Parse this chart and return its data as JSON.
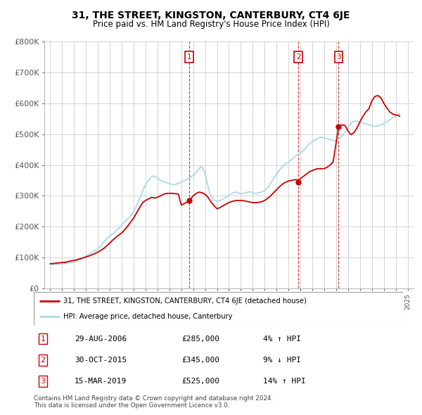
{
  "title": "31, THE STREET, KINGSTON, CANTERBURY, CT4 6JE",
  "subtitle": "Price paid vs. HM Land Registry's House Price Index (HPI)",
  "ylabel_ticks": [
    "£0",
    "£100K",
    "£200K",
    "£300K",
    "£400K",
    "£500K",
    "£600K",
    "£700K",
    "£800K"
  ],
  "ytick_values": [
    0,
    100000,
    200000,
    300000,
    400000,
    500000,
    600000,
    700000,
    800000
  ],
  "ylim": [
    0,
    800000
  ],
  "xlim_start": 1994.5,
  "xlim_end": 2025.5,
  "red_color": "#cc0000",
  "blue_color": "#add8e6",
  "grid_color": "#cccccc",
  "purchase_dates": [
    2006.67,
    2015.83,
    2019.21
  ],
  "purchase_labels": [
    "1",
    "2",
    "3"
  ],
  "purchase_prices": [
    285000,
    345000,
    525000
  ],
  "legend_line1": "31, THE STREET, KINGSTON, CANTERBURY, CT4 6JE (detached house)",
  "legend_line2": "HPI: Average price, detached house, Canterbury",
  "table_data": [
    [
      "1",
      "29-AUG-2006",
      "£285,000",
      "4% ↑ HPI"
    ],
    [
      "2",
      "30-OCT-2015",
      "£345,000",
      "9% ↓ HPI"
    ],
    [
      "3",
      "15-MAR-2019",
      "£525,000",
      "14% ↑ HPI"
    ]
  ],
  "footer": "Contains HM Land Registry data © Crown copyright and database right 2024.\nThis data is licensed under the Open Government Licence v3.0.",
  "hpi_data_x": [
    1995.0,
    1995.08,
    1995.17,
    1995.25,
    1995.33,
    1995.42,
    1995.5,
    1995.58,
    1995.67,
    1995.75,
    1995.83,
    1995.92,
    1996.0,
    1996.08,
    1996.17,
    1996.25,
    1996.33,
    1996.42,
    1996.5,
    1996.58,
    1996.67,
    1996.75,
    1996.83,
    1996.92,
    1997.0,
    1997.08,
    1997.17,
    1997.25,
    1997.33,
    1997.42,
    1997.5,
    1997.58,
    1997.67,
    1997.75,
    1997.83,
    1997.92,
    1998.0,
    1998.08,
    1998.17,
    1998.25,
    1998.33,
    1998.42,
    1998.5,
    1998.58,
    1998.67,
    1998.75,
    1998.83,
    1998.92,
    1999.0,
    1999.08,
    1999.17,
    1999.25,
    1999.33,
    1999.42,
    1999.5,
    1999.58,
    1999.67,
    1999.75,
    1999.83,
    1999.92,
    2000.0,
    2000.08,
    2000.17,
    2000.25,
    2000.33,
    2000.42,
    2000.5,
    2000.58,
    2000.67,
    2000.75,
    2000.83,
    2000.92,
    2001.0,
    2001.08,
    2001.17,
    2001.25,
    2001.33,
    2001.42,
    2001.5,
    2001.58,
    2001.67,
    2001.75,
    2001.83,
    2001.92,
    2002.0,
    2002.08,
    2002.17,
    2002.25,
    2002.33,
    2002.42,
    2002.5,
    2002.58,
    2002.67,
    2002.75,
    2002.83,
    2002.92,
    2003.0,
    2003.08,
    2003.17,
    2003.25,
    2003.33,
    2003.42,
    2003.5,
    2003.58,
    2003.67,
    2003.75,
    2003.83,
    2003.92,
    2004.0,
    2004.08,
    2004.17,
    2004.25,
    2004.33,
    2004.42,
    2004.5,
    2004.58,
    2004.67,
    2004.75,
    2004.83,
    2004.92,
    2005.0,
    2005.08,
    2005.17,
    2005.25,
    2005.33,
    2005.42,
    2005.5,
    2005.58,
    2005.67,
    2005.75,
    2005.83,
    2005.92,
    2006.0,
    2006.08,
    2006.17,
    2006.25,
    2006.33,
    2006.42,
    2006.5,
    2006.58,
    2006.67,
    2006.75,
    2006.83,
    2006.92,
    2007.0,
    2007.08,
    2007.17,
    2007.25,
    2007.33,
    2007.42,
    2007.5,
    2007.58,
    2007.67,
    2007.75,
    2007.83,
    2007.92,
    2008.0,
    2008.08,
    2008.17,
    2008.25,
    2008.33,
    2008.42,
    2008.5,
    2008.58,
    2008.67,
    2008.75,
    2008.83,
    2008.92,
    2009.0,
    2009.08,
    2009.17,
    2009.25,
    2009.33,
    2009.42,
    2009.5,
    2009.58,
    2009.67,
    2009.75,
    2009.83,
    2009.92,
    2010.0,
    2010.08,
    2010.17,
    2010.25,
    2010.33,
    2010.42,
    2010.5,
    2010.58,
    2010.67,
    2010.75,
    2010.83,
    2010.92,
    2011.0,
    2011.08,
    2011.17,
    2011.25,
    2011.33,
    2011.42,
    2011.5,
    2011.58,
    2011.67,
    2011.75,
    2011.83,
    2011.92,
    2012.0,
    2012.08,
    2012.17,
    2012.25,
    2012.33,
    2012.42,
    2012.5,
    2012.58,
    2012.67,
    2012.75,
    2012.83,
    2012.92,
    2013.0,
    2013.08,
    2013.17,
    2013.25,
    2013.33,
    2013.42,
    2013.5,
    2013.58,
    2013.67,
    2013.75,
    2013.83,
    2013.92,
    2014.0,
    2014.08,
    2014.17,
    2014.25,
    2014.33,
    2014.42,
    2014.5,
    2014.58,
    2014.67,
    2014.75,
    2014.83,
    2014.92,
    2015.0,
    2015.08,
    2015.17,
    2015.25,
    2015.33,
    2015.42,
    2015.5,
    2015.58,
    2015.67,
    2015.75,
    2015.83,
    2015.92,
    2016.0,
    2016.08,
    2016.17,
    2016.25,
    2016.33,
    2016.42,
    2016.5,
    2016.58,
    2016.67,
    2016.75,
    2016.83,
    2016.92,
    2017.0,
    2017.08,
    2017.17,
    2017.25,
    2017.33,
    2017.42,
    2017.5,
    2017.58,
    2017.67,
    2017.75,
    2017.83,
    2017.92,
    2018.0,
    2018.08,
    2018.17,
    2018.25,
    2018.33,
    2018.42,
    2018.5,
    2018.58,
    2018.67,
    2018.75,
    2018.83,
    2018.92,
    2019.0,
    2019.08,
    2019.17,
    2019.25,
    2019.33,
    2019.42,
    2019.5,
    2019.58,
    2019.67,
    2019.75,
    2019.83,
    2019.92,
    2020.0,
    2020.08,
    2020.17,
    2020.25,
    2020.33,
    2020.42,
    2020.5,
    2020.58,
    2020.67,
    2020.75,
    2020.83,
    2020.92,
    2021.0,
    2021.08,
    2021.17,
    2021.25,
    2021.33,
    2021.42,
    2021.5,
    2021.58,
    2021.67,
    2021.75,
    2021.83,
    2021.92,
    2022.0,
    2022.08,
    2022.17,
    2022.25,
    2022.33,
    2022.42,
    2022.5,
    2022.58,
    2022.67,
    2022.75,
    2022.83,
    2022.92,
    2023.0,
    2023.08,
    2023.17,
    2023.25,
    2023.33,
    2023.42,
    2023.5,
    2023.58,
    2023.67,
    2023.75,
    2023.83,
    2023.92,
    2024.0,
    2024.08,
    2024.17,
    2024.25,
    2024.33
  ],
  "hpi_data_y": [
    78000,
    77500,
    77000,
    76800,
    77200,
    77800,
    78200,
    78500,
    78800,
    79000,
    79200,
    79500,
    79800,
    80000,
    80500,
    81000,
    81500,
    82000,
    82500,
    83000,
    83500,
    84000,
    84500,
    85000,
    86000,
    87000,
    88000,
    89000,
    90500,
    92000,
    93500,
    95000,
    97000,
    99000,
    101000,
    103000,
    105000,
    107000,
    109000,
    111000,
    113000,
    115000,
    117000,
    119000,
    121000,
    123000,
    125000,
    127000,
    129000,
    132000,
    135000,
    138000,
    142000,
    146000,
    150000,
    154000,
    158000,
    162000,
    165000,
    168000,
    170000,
    172000,
    174000,
    177000,
    180000,
    183000,
    186000,
    189000,
    192000,
    195000,
    198000,
    202000,
    206000,
    210000,
    213000,
    216000,
    219000,
    222000,
    225000,
    228000,
    232000,
    236000,
    240000,
    244000,
    248000,
    255000,
    262000,
    269000,
    276000,
    283000,
    290000,
    298000,
    306000,
    314000,
    322000,
    330000,
    336000,
    341000,
    346000,
    350000,
    354000,
    358000,
    362000,
    363000,
    363500,
    364000,
    362000,
    360000,
    358000,
    355000,
    352000,
    350000,
    348000,
    347000,
    346000,
    345000,
    344000,
    343000,
    342000,
    341000,
    340000,
    339000,
    338000,
    337000,
    336000,
    336000,
    337000,
    338000,
    340000,
    341000,
    342000,
    343000,
    344000,
    345000,
    347000,
    349000,
    351000,
    353000,
    355000,
    357000,
    358000,
    360000,
    362000,
    364000,
    366000,
    369000,
    372000,
    376000,
    380000,
    384000,
    388000,
    392000,
    394000,
    393000,
    388000,
    380000,
    370000,
    358000,
    345000,
    330000,
    318000,
    308000,
    300000,
    294000,
    290000,
    287000,
    285000,
    284000,
    283000,
    283000,
    284000,
    285000,
    286000,
    288000,
    290000,
    292000,
    294000,
    296000,
    298000,
    300000,
    302000,
    304000,
    306000,
    308000,
    310000,
    311000,
    312000,
    312000,
    311000,
    310000,
    309000,
    308000,
    307000,
    307000,
    307000,
    308000,
    309000,
    310000,
    311000,
    312000,
    313000,
    313000,
    312000,
    311000,
    310000,
    309000,
    308000,
    308000,
    308000,
    309000,
    310000,
    311000,
    312000,
    313000,
    314000,
    315000,
    317000,
    320000,
    323000,
    327000,
    331000,
    336000,
    341000,
    346000,
    351000,
    356000,
    361000,
    366000,
    371000,
    376000,
    380000,
    384000,
    388000,
    392000,
    395000,
    398000,
    401000,
    403000,
    405000,
    407000,
    409000,
    411000,
    414000,
    417000,
    420000,
    423000,
    426000,
    429000,
    431000,
    433000,
    435000,
    437000,
    439000,
    441000,
    444000,
    447000,
    450000,
    454000,
    458000,
    462000,
    465000,
    468000,
    471000,
    473000,
    475000,
    477000,
    479000,
    481000,
    483000,
    485000,
    487000,
    489000,
    490000,
    490000,
    490000,
    489000,
    488000,
    487000,
    486000,
    485000,
    484000,
    483000,
    482000,
    481000,
    480000,
    479000,
    479000,
    479000,
    479000,
    480000,
    482000,
    484000,
    487000,
    490000,
    494000,
    498000,
    502000,
    507000,
    512000,
    517000,
    522000,
    527000,
    531000,
    535000,
    538000,
    540000,
    541000,
    542000,
    542000,
    542000,
    541000,
    540000,
    539000,
    538000,
    537000,
    536000,
    535000,
    534000,
    533000,
    532000,
    531000,
    530000,
    529000,
    528000,
    527000,
    526000,
    525000,
    525000,
    525000,
    526000,
    527000,
    528000,
    529000,
    530000,
    531000,
    532000,
    534000,
    536000,
    538000,
    540000,
    542000,
    544000,
    546000,
    548000,
    550000,
    552000,
    554000,
    556000,
    558000,
    560000,
    562000,
    564000,
    565000,
    566000,
    567000
  ],
  "prop_data_x": [
    1995.0,
    1995.25,
    1995.5,
    1995.75,
    1996.0,
    1996.25,
    1996.5,
    1996.75,
    1997.0,
    1997.25,
    1997.5,
    1997.75,
    1998.0,
    1998.25,
    1998.5,
    1998.75,
    1999.0,
    1999.25,
    1999.5,
    1999.75,
    2000.0,
    2000.25,
    2000.5,
    2000.75,
    2001.0,
    2001.25,
    2001.5,
    2001.75,
    2002.0,
    2002.25,
    2002.5,
    2002.75,
    2003.0,
    2003.25,
    2003.5,
    2003.75,
    2004.0,
    2004.25,
    2004.5,
    2004.75,
    2005.0,
    2005.25,
    2005.5,
    2005.75,
    2006.0,
    2006.25,
    2006.5,
    2006.67,
    2007.0,
    2007.25,
    2007.5,
    2007.75,
    2008.0,
    2008.25,
    2008.5,
    2008.75,
    2009.0,
    2009.25,
    2009.5,
    2009.75,
    2010.0,
    2010.25,
    2010.5,
    2010.75,
    2011.0,
    2011.25,
    2011.5,
    2011.75,
    2012.0,
    2012.25,
    2012.5,
    2012.75,
    2013.0,
    2013.25,
    2013.5,
    2013.75,
    2014.0,
    2014.25,
    2014.5,
    2014.75,
    2015.0,
    2015.25,
    2015.5,
    2015.75,
    2015.83,
    2016.0,
    2016.25,
    2016.5,
    2016.75,
    2017.0,
    2017.25,
    2017.5,
    2017.75,
    2018.0,
    2018.25,
    2018.5,
    2018.75,
    2019.21,
    2019.5,
    2019.75,
    2020.0,
    2020.25,
    2020.5,
    2020.75,
    2021.0,
    2021.25,
    2021.5,
    2021.75,
    2022.0,
    2022.25,
    2022.5,
    2022.75,
    2023.0,
    2023.25,
    2023.5,
    2023.75,
    2024.0,
    2024.25,
    2024.33
  ],
  "prop_data_y": [
    80000,
    81000,
    82000,
    83000,
    84000,
    85000,
    87000,
    89000,
    91000,
    93000,
    96000,
    99000,
    102000,
    105000,
    109000,
    113000,
    118000,
    123000,
    130000,
    138000,
    147000,
    157000,
    165000,
    173000,
    180000,
    190000,
    202000,
    215000,
    228000,
    245000,
    262000,
    278000,
    285000,
    290000,
    295000,
    293000,
    295000,
    300000,
    305000,
    308000,
    308000,
    308000,
    307000,
    306000,
    270000,
    275000,
    280000,
    285000,
    300000,
    308000,
    312000,
    310000,
    305000,
    295000,
    280000,
    268000,
    258000,
    262000,
    268000,
    273000,
    278000,
    282000,
    284000,
    285000,
    285000,
    284000,
    282000,
    280000,
    278000,
    278000,
    279000,
    281000,
    285000,
    292000,
    300000,
    310000,
    320000,
    330000,
    338000,
    344000,
    348000,
    350000,
    352000,
    352000,
    345000,
    356000,
    363000,
    370000,
    378000,
    382000,
    386000,
    388000,
    388000,
    388000,
    393000,
    400000,
    410000,
    525000,
    530000,
    528000,
    510000,
    498000,
    505000,
    520000,
    540000,
    558000,
    572000,
    582000,
    608000,
    622000,
    625000,
    618000,
    600000,
    585000,
    572000,
    565000,
    562000,
    560000,
    558000
  ]
}
